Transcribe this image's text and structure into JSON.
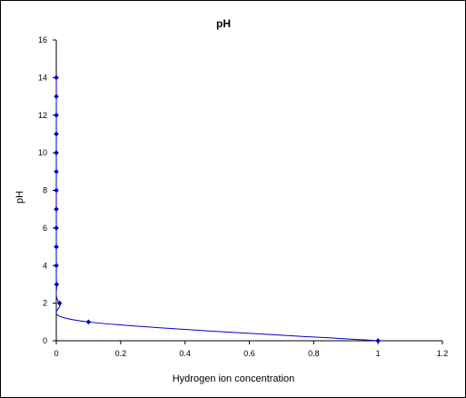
{
  "chart_data": {
    "type": "scatter",
    "title": "pH",
    "xlabel": "Hydrogen ion concentration",
    "ylabel": "pH",
    "xlim": [
      0,
      1.2
    ],
    "ylim": [
      0,
      16
    ],
    "xticks": [
      0,
      0.2,
      0.4,
      0.6,
      0.8,
      1,
      1.2
    ],
    "xtick_labels": [
      "0",
      "0.2",
      "0.4",
      "0.6",
      "0.8",
      "1",
      "1.2"
    ],
    "yticks": [
      0,
      2,
      4,
      6,
      8,
      10,
      12,
      14,
      16
    ],
    "ytick_labels": [
      "0",
      "2",
      "4",
      "6",
      "8",
      "10",
      "12",
      "14",
      "16"
    ],
    "grid": false,
    "legend": "none",
    "series": [
      {
        "color": "#0000cc",
        "smooth_line": true,
        "x": [
          1,
          0.1,
          0.01,
          0.001,
          0.0001,
          1e-05,
          1e-06,
          1e-07,
          1e-08,
          1e-09,
          1e-10,
          1e-11,
          1e-12,
          1e-13,
          1e-14
        ],
        "y": [
          0,
          1,
          2,
          3,
          4,
          5,
          6,
          7,
          8,
          9,
          10,
          11,
          12,
          13,
          14
        ]
      }
    ]
  }
}
